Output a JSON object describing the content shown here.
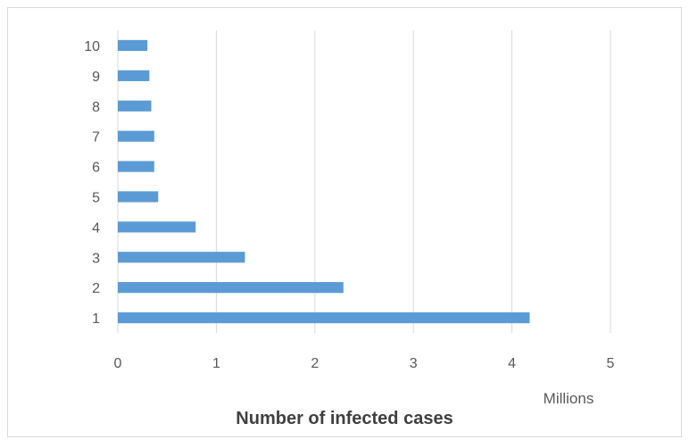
{
  "chart_data": {
    "type": "bar",
    "orientation": "horizontal",
    "categories": [
      "1",
      "2",
      "3",
      "4",
      "5",
      "6",
      "7",
      "8",
      "9",
      "10"
    ],
    "values": [
      4.18,
      2.29,
      1.29,
      0.79,
      0.41,
      0.37,
      0.37,
      0.34,
      0.32,
      0.3
    ],
    "xlim": [
      0,
      5
    ],
    "xticks": [
      "0",
      "1",
      "2",
      "3",
      "4",
      "5"
    ],
    "x_unit": "Millions",
    "xlabel": "Number of infected cases",
    "ylabel": "",
    "title": "",
    "grid": "vertical",
    "legend": "none",
    "bar_color": "#5b9bd5",
    "grid_color": "#d9d9d9"
  }
}
